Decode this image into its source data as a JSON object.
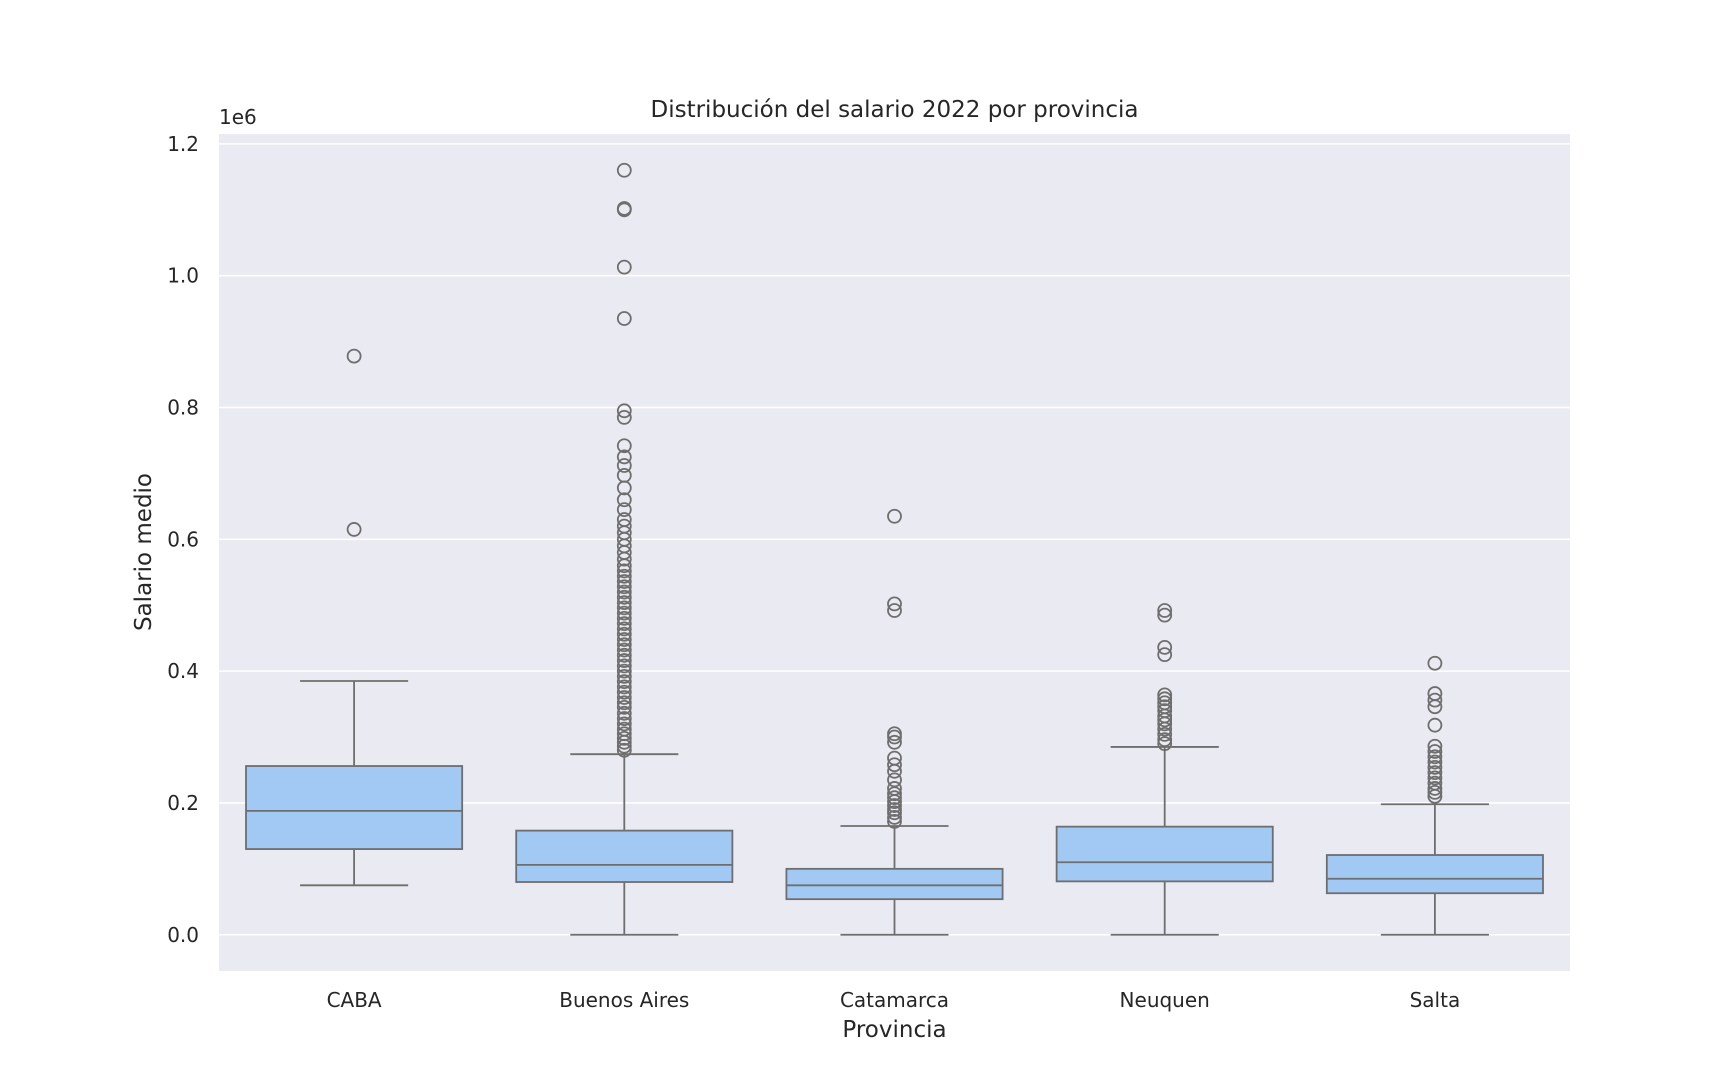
{
  "chart_data": {
    "type": "box",
    "title": "Distribución del salario 2022 por provincia",
    "xlabel": "Provincia",
    "ylabel": "Salario medio",
    "y_offset_label": "1e6",
    "y_scale_factor": 1000000,
    "ylim": [
      -55000,
      1215000
    ],
    "yticks": [
      0,
      200000,
      400000,
      600000,
      800000,
      1000000,
      1200000
    ],
    "ytick_labels": [
      "0.0",
      "0.2",
      "0.4",
      "0.6",
      "0.8",
      "1.0",
      "1.2"
    ],
    "grid": true,
    "colors": {
      "background": "#eaeaf2",
      "box_fill": "#a1c9f4",
      "line": "#6e6e6e",
      "grid": "#ffffff"
    },
    "categories": [
      "CABA",
      "Buenos Aires",
      "Catamarca",
      "Neuquen",
      "Salta"
    ],
    "boxes": [
      {
        "category": "CABA",
        "whisker_low": 75000,
        "q1": 130000,
        "median": 188000,
        "q3": 256000,
        "whisker_high": 385000,
        "outliers": [
          615000,
          878000
        ]
      },
      {
        "category": "Buenos Aires",
        "whisker_low": 0,
        "q1": 80000,
        "median": 106000,
        "q3": 158000,
        "whisker_high": 274000,
        "outliers": [
          280000,
          286000,
          292000,
          298000,
          305000,
          312000,
          320000,
          328000,
          336000,
          345000,
          352000,
          360000,
          368000,
          376000,
          384000,
          392000,
          400000,
          408000,
          416000,
          424000,
          432000,
          440000,
          448000,
          456000,
          464000,
          472000,
          480000,
          488000,
          496000,
          504000,
          512000,
          520000,
          528000,
          536000,
          544000,
          552000,
          560000,
          570000,
          580000,
          590000,
          600000,
          610000,
          620000,
          630000,
          645000,
          660000,
          678000,
          697000,
          712000,
          725000,
          742000,
          785000,
          795000,
          935000,
          1013000,
          1100000,
          1102000,
          1160000
        ]
      },
      {
        "category": "Catamarca",
        "whisker_low": 0,
        "q1": 54000,
        "median": 75000,
        "q3": 100000,
        "whisker_high": 165000,
        "outliers": [
          172000,
          178000,
          185000,
          190000,
          196000,
          202000,
          208000,
          214000,
          222000,
          235000,
          248000,
          258000,
          268000,
          292000,
          300000,
          305000,
          492000,
          502000,
          635000
        ]
      },
      {
        "category": "Neuquen",
        "whisker_low": 0,
        "q1": 81000,
        "median": 110000,
        "q3": 164000,
        "whisker_high": 285000,
        "outliers": [
          290000,
          296000,
          304000,
          312000,
          320000,
          326000,
          332000,
          340000,
          346000,
          352000,
          358000,
          364000,
          425000,
          436000,
          485000,
          492000
        ]
      },
      {
        "category": "Salta",
        "whisker_low": 0,
        "q1": 63000,
        "median": 85000,
        "q3": 121000,
        "whisker_high": 198000,
        "outliers": [
          210000,
          216000,
          222000,
          230000,
          238000,
          246000,
          254000,
          262000,
          270000,
          278000,
          286000,
          318000,
          346000,
          356000,
          366000,
          412000
        ]
      }
    ]
  }
}
